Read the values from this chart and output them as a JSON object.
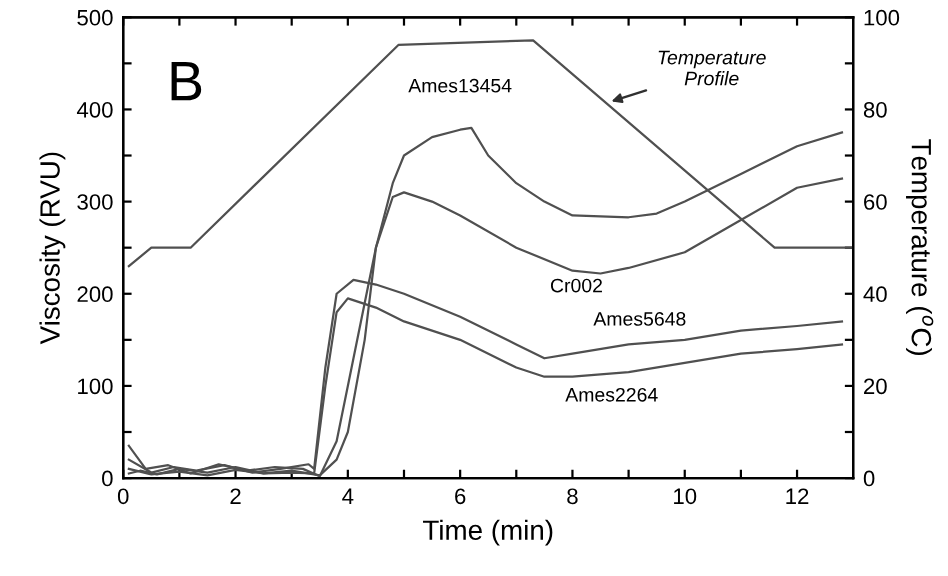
{
  "chart_data": {
    "type": "line",
    "xlabel": "Time (min)",
    "ylabel": "Viscosity (RVU)",
    "y2label": "Temperature ($^{o}$C)",
    "xlim": [
      0,
      13
    ],
    "ylim": [
      0,
      500
    ],
    "y2lim": [
      0,
      100
    ],
    "xticks": [
      0,
      {
        "value": 1,
        "label": null
      },
      2,
      {
        "value": 3,
        "label": null
      },
      4,
      {
        "value": 5,
        "label": null
      },
      6,
      {
        "value": 7,
        "label": null
      },
      8,
      {
        "value": 9,
        "label": null
      },
      10,
      {
        "value": 11,
        "label": null
      },
      12
    ],
    "yticks": [
      0,
      {
        "value": 50,
        "label": null
      },
      100,
      {
        "value": 150,
        "label": null
      },
      200,
      {
        "value": 250,
        "label": null
      },
      300,
      {
        "value": 350,
        "label": null
      },
      400,
      {
        "value": 450,
        "label": null
      },
      500
    ],
    "y2ticks": [
      0,
      {
        "value": 10,
        "label": null
      },
      20,
      {
        "value": 30,
        "label": null
      },
      40,
      {
        "value": 50,
        "label": null
      },
      60,
      {
        "value": 70,
        "label": null
      },
      80,
      {
        "value": 90,
        "label": null
      },
      100
    ],
    "grid": false,
    "legend": false,
    "marker": "none",
    "line_style": "solid",
    "annotations": [
      "B",
      "Temperature\nProfile"
    ],
    "series": [
      {
        "name": "Ames13454",
        "color": "#505050",
        "x": [
          0.1,
          0.3,
          0.6,
          1.0,
          1.5,
          2.0,
          2.5,
          3.0,
          3.5,
          3.8,
          4.0,
          4.3,
          4.5,
          4.8,
          5.0,
          5.5,
          6.0,
          6.2,
          6.5,
          7.0,
          7.5,
          8.0,
          9.0,
          9.5,
          10.0,
          11.0,
          12.0,
          12.8
        ],
        "values": [
          5,
          8,
          4,
          10,
          6,
          12,
          5,
          8,
          3,
          20,
          50,
          150,
          250,
          320,
          350,
          370,
          378,
          380,
          350,
          320,
          300,
          285,
          283,
          287,
          300,
          330,
          360,
          375
        ]
      },
      {
        "name": "Cr002",
        "color": "#505050",
        "x": [
          0.1,
          0.4,
          0.8,
          1.2,
          1.7,
          2.2,
          2.7,
          3.2,
          3.5,
          3.8,
          4.0,
          4.3,
          4.5,
          4.8,
          5.0,
          5.5,
          6.0,
          7.0,
          8.0,
          8.5,
          9.0,
          10.0,
          11.0,
          12.0,
          12.8
        ],
        "values": [
          35,
          10,
          14,
          5,
          15,
          8,
          12,
          10,
          2,
          40,
          100,
          190,
          250,
          305,
          310,
          300,
          285,
          250,
          225,
          222,
          228,
          245,
          280,
          315,
          325
        ]
      },
      {
        "name": "Ames5648",
        "color": "#505050",
        "x": [
          0.1,
          0.5,
          0.9,
          1.3,
          1.8,
          2.3,
          2.8,
          3.3,
          3.4,
          3.6,
          3.8,
          4.1,
          4.5,
          5.0,
          6.0,
          7.0,
          7.5,
          8.0,
          9.0,
          10.0,
          11.0,
          12.0,
          12.8
        ],
        "values": [
          20,
          6,
          12,
          8,
          14,
          6,
          10,
          15,
          10,
          120,
          200,
          215,
          210,
          200,
          175,
          145,
          130,
          135,
          145,
          150,
          160,
          165,
          170
        ]
      },
      {
        "name": "Ames2264",
        "color": "#505050",
        "x": [
          0.1,
          0.5,
          1.0,
          1.5,
          2.0,
          2.5,
          3.0,
          3.4,
          3.6,
          3.8,
          4.0,
          4.5,
          5.0,
          6.0,
          7.0,
          7.5,
          8.0,
          9.0,
          10.0,
          11.0,
          12.0,
          12.8
        ],
        "values": [
          10,
          4,
          7,
          3,
          9,
          5,
          6,
          5,
          100,
          180,
          195,
          185,
          170,
          150,
          120,
          110,
          110,
          115,
          125,
          135,
          140,
          145
        ]
      },
      {
        "color": "#505050",
        "axis": "y2",
        "x": [
          0.1,
          0.5,
          1.2,
          4.9,
          7.3,
          11.6,
          13.0
        ],
        "values": [
          46,
          50,
          50,
          94,
          95,
          50,
          50
        ]
      }
    ]
  }
}
